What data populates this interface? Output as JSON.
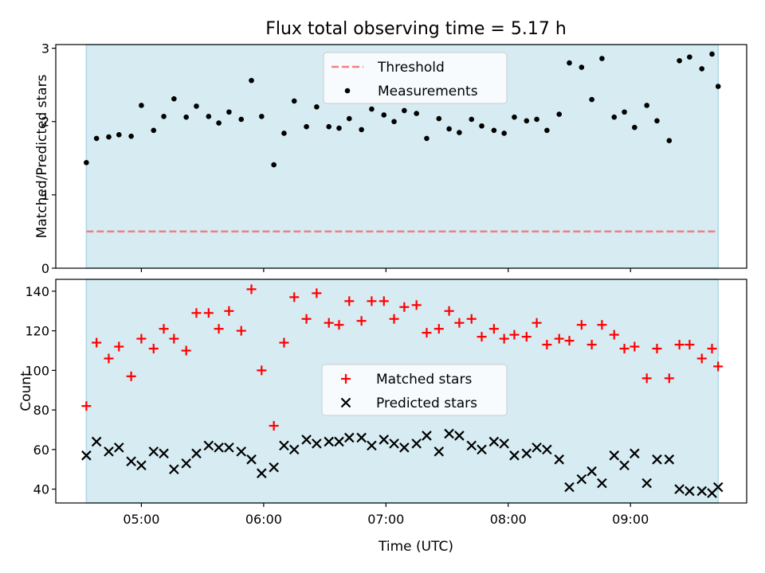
{
  "figure": {
    "title": "Flux total observing time = 5.17 h",
    "xlabel": "Time (UTC)",
    "x_tick_labels": [
      "05:00",
      "06:00",
      "07:00",
      "08:00",
      "09:00"
    ],
    "colors": {
      "shade": "#add8e6",
      "threshold": "#f08080",
      "measurements": "#000000",
      "matched": "#ff0000",
      "predicted": "#000000"
    }
  },
  "chart_data": [
    {
      "type": "scatter",
      "ylabel": "Matched/Predicted stars",
      "ylim": [
        0,
        3.05
      ],
      "yticks": [
        0,
        1,
        2,
        3
      ],
      "xlim": [
        "04:18",
        "09:57"
      ],
      "shaded_range": [
        "04:33",
        "09:43"
      ],
      "threshold": 0.5,
      "legend_placement": "top-center",
      "legend": [
        "Threshold",
        "Measurements"
      ],
      "series": [
        {
          "name": "Measurements",
          "marker": "dot",
          "x": [
            "04:33",
            "04:38",
            "04:44",
            "04:49",
            "04:55",
            "05:00",
            "05:06",
            "05:11",
            "05:16",
            "05:22",
            "05:27",
            "05:33",
            "05:38",
            "05:43",
            "05:49",
            "05:54",
            "05:59",
            "06:05",
            "06:10",
            "06:15",
            "06:21",
            "06:26",
            "06:32",
            "06:37",
            "06:42",
            "06:48",
            "06:53",
            "06:59",
            "07:04",
            "07:09",
            "07:15",
            "07:20",
            "07:26",
            "07:31",
            "07:36",
            "07:42",
            "07:47",
            "07:53",
            "07:58",
            "08:03",
            "08:09",
            "08:14",
            "08:19",
            "08:25",
            "08:30",
            "08:36",
            "08:41",
            "08:46",
            "08:52",
            "08:57",
            "09:02",
            "09:08",
            "09:13",
            "09:19",
            "09:24",
            "09:29",
            "09:35",
            "09:40",
            "09:43"
          ],
          "y": [
            1.44,
            1.77,
            1.79,
            1.82,
            1.8,
            2.22,
            1.88,
            2.07,
            2.31,
            2.06,
            2.21,
            2.07,
            1.98,
            2.13,
            2.03,
            2.56,
            2.07,
            1.41,
            1.84,
            2.28,
            1.93,
            2.2,
            1.93,
            1.91,
            2.04,
            1.89,
            2.17,
            2.09,
            2.0,
            2.15,
            2.11,
            1.77,
            2.04,
            1.9,
            1.85,
            2.03,
            1.94,
            1.88,
            1.84,
            2.06,
            2.01,
            2.03,
            1.88,
            2.1,
            2.8,
            2.74,
            2.3,
            2.86,
            2.06,
            2.13,
            1.92,
            2.22,
            2.01,
            1.74,
            2.83,
            2.88,
            2.72,
            2.92,
            2.48
          ]
        }
      ]
    },
    {
      "type": "scatter",
      "ylabel": "Count",
      "ylim": [
        33,
        146
      ],
      "yticks": [
        40,
        60,
        80,
        100,
        120,
        140
      ],
      "xlim": [
        "04:18",
        "09:57"
      ],
      "shaded_range": [
        "04:33",
        "09:43"
      ],
      "legend_placement": "center",
      "legend": [
        "Matched stars",
        "Predicted stars"
      ],
      "series": [
        {
          "name": "Matched stars",
          "marker": "plus",
          "x": [
            "04:33",
            "04:38",
            "04:44",
            "04:49",
            "04:55",
            "05:00",
            "05:06",
            "05:11",
            "05:16",
            "05:22",
            "05:27",
            "05:33",
            "05:38",
            "05:43",
            "05:49",
            "05:54",
            "05:59",
            "06:05",
            "06:10",
            "06:15",
            "06:21",
            "06:26",
            "06:32",
            "06:37",
            "06:42",
            "06:48",
            "06:53",
            "06:59",
            "07:04",
            "07:09",
            "07:15",
            "07:20",
            "07:26",
            "07:31",
            "07:36",
            "07:42",
            "07:47",
            "07:53",
            "07:58",
            "08:03",
            "08:09",
            "08:14",
            "08:19",
            "08:25",
            "08:30",
            "08:36",
            "08:41",
            "08:46",
            "08:52",
            "08:57",
            "09:02",
            "09:08",
            "09:13",
            "09:19",
            "09:24",
            "09:29",
            "09:35",
            "09:40",
            "09:43"
          ],
          "y": [
            82,
            114,
            106,
            112,
            97,
            116,
            111,
            121,
            116,
            110,
            129,
            129,
            121,
            130,
            120,
            141,
            100,
            72,
            114,
            137,
            126,
            139,
            124,
            123,
            135,
            125,
            135,
            135,
            126,
            132,
            133,
            119,
            121,
            130,
            124,
            126,
            117,
            121,
            116,
            118,
            117,
            124,
            113,
            116,
            115,
            123,
            113,
            123,
            118,
            111,
            112,
            96,
            111,
            96,
            113,
            113,
            106,
            111,
            102
          ]
        },
        {
          "name": "Predicted stars",
          "marker": "x",
          "x": [
            "04:33",
            "04:38",
            "04:44",
            "04:49",
            "04:55",
            "05:00",
            "05:06",
            "05:11",
            "05:16",
            "05:22",
            "05:27",
            "05:33",
            "05:38",
            "05:43",
            "05:49",
            "05:54",
            "05:59",
            "06:05",
            "06:10",
            "06:15",
            "06:21",
            "06:26",
            "06:32",
            "06:37",
            "06:42",
            "06:48",
            "06:53",
            "06:59",
            "07:04",
            "07:09",
            "07:15",
            "07:20",
            "07:26",
            "07:31",
            "07:36",
            "07:42",
            "07:47",
            "07:53",
            "07:58",
            "08:03",
            "08:09",
            "08:14",
            "08:19",
            "08:25",
            "08:30",
            "08:36",
            "08:41",
            "08:46",
            "08:52",
            "08:57",
            "09:02",
            "09:08",
            "09:13",
            "09:19",
            "09:24",
            "09:29",
            "09:35",
            "09:40",
            "09:43"
          ],
          "y": [
            57,
            64,
            59,
            61,
            54,
            52,
            59,
            58,
            50,
            53,
            58,
            62,
            61,
            61,
            59,
            55,
            48,
            51,
            62,
            60,
            65,
            63,
            64,
            64,
            66,
            66,
            62,
            65,
            63,
            61,
            63,
            67,
            59,
            68,
            67,
            62,
            60,
            64,
            63,
            57,
            58,
            61,
            60,
            55,
            41,
            45,
            49,
            43,
            57,
            52,
            58,
            43,
            55,
            55,
            40,
            39,
            39,
            38,
            41
          ]
        }
      ]
    }
  ]
}
